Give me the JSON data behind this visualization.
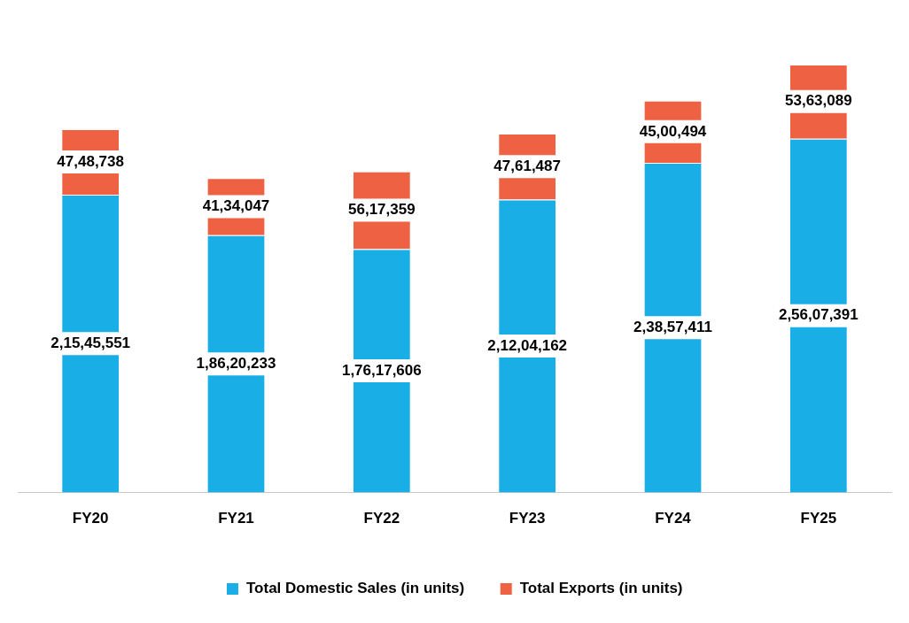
{
  "chart_data": {
    "type": "bar",
    "stacked": true,
    "categories": [
      "FY20",
      "FY21",
      "FY22",
      "FY23",
      "FY24",
      "FY25"
    ],
    "series": [
      {
        "name": "Total Domestic Sales (in units)",
        "color": "#1aaee6",
        "values": [
          21545551,
          18620233,
          17617606,
          21204162,
          23857411,
          25607391
        ],
        "value_labels": [
          "2,15,45,551",
          "1,86,20,233",
          "1,76,17,606",
          "2,12,04,162",
          "2,38,57,411",
          "2,56,07,391"
        ]
      },
      {
        "name": "Total Exports (in units)",
        "color": "#ee6243",
        "values": [
          4748738,
          4134047,
          5617359,
          4761487,
          4500494,
          5363089
        ],
        "value_labels": [
          "47,48,738",
          "41,34,047",
          "56,17,359",
          "47,61,487",
          "45,00,494",
          "53,63,089"
        ]
      }
    ],
    "legend": "bottom",
    "grid": false,
    "tick_labels": "x"
  }
}
